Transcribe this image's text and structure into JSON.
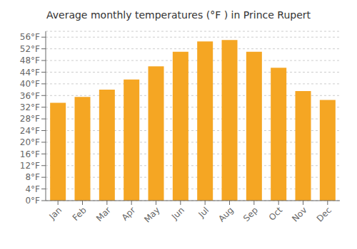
{
  "chart_data": {
    "type": "bar",
    "title": "Average monthly temperatures (°F ) in Prince Rupert",
    "categories": [
      "Jan",
      "Feb",
      "Mar",
      "Apr",
      "May",
      "Jun",
      "Jul",
      "Aug",
      "Sep",
      "Oct",
      "Nov",
      "Dec"
    ],
    "values": [
      33.5,
      35.5,
      38,
      41.5,
      46,
      51,
      54.5,
      55,
      51,
      45.5,
      37.5,
      34.5
    ],
    "color": "#F5A623",
    "ylim": [
      0,
      58
    ],
    "yticks": [
      {
        "value": 0,
        "label": "0°F"
      },
      {
        "value": 4,
        "label": "4°F"
      },
      {
        "value": 8,
        "label": "8°F"
      },
      {
        "value": 12,
        "label": "12°F"
      },
      {
        "value": 16,
        "label": "16°F"
      },
      {
        "value": 20,
        "label": "20°F"
      },
      {
        "value": 24,
        "label": "24°F"
      },
      {
        "value": 28,
        "label": "28°F"
      },
      {
        "value": 32,
        "label": "32°F"
      },
      {
        "value": 36,
        "label": "36°F"
      },
      {
        "value": 40,
        "label": "40°F"
      },
      {
        "value": 44,
        "label": "44°F"
      },
      {
        "value": 48,
        "label": "48°F"
      },
      {
        "value": 52,
        "label": "52°F"
      },
      {
        "value": 56,
        "label": "56°F"
      }
    ],
    "grid": true
  }
}
